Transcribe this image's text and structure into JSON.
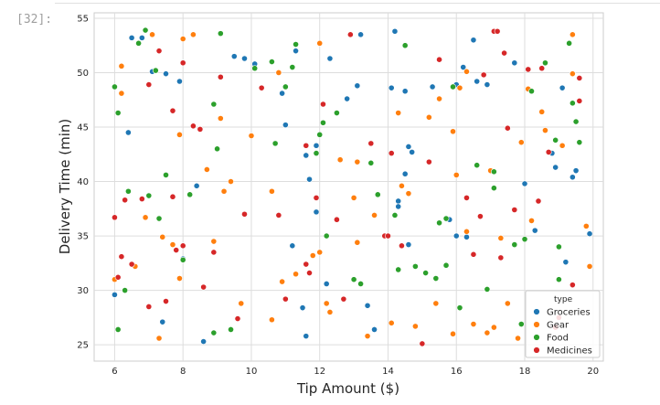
{
  "cell": {
    "prompt": "[32]:"
  },
  "chart_data": {
    "type": "scatter",
    "title": "",
    "xlabel": "Tip Amount ($)",
    "ylabel": "Delivery Time (min)",
    "xlim": [
      5.4,
      20.3
    ],
    "ylim": [
      23.5,
      55.5
    ],
    "xticks": [
      6,
      8,
      10,
      12,
      14,
      16,
      18,
      20
    ],
    "yticks": [
      25,
      30,
      35,
      40,
      45,
      50,
      55
    ],
    "grid": true,
    "legend": {
      "title": "type",
      "position": "lower-right"
    },
    "series": [
      {
        "name": "Groceries",
        "color": "#1f77b4",
        "points": [
          [
            6.0,
            29.6
          ],
          [
            6.4,
            44.5
          ],
          [
            6.5,
            53.2
          ],
          [
            6.8,
            53.2
          ],
          [
            7.1,
            50.1
          ],
          [
            7.4,
            27.1
          ],
          [
            7.5,
            49.9
          ],
          [
            7.9,
            49.2
          ],
          [
            8.0,
            32.9
          ],
          [
            8.4,
            39.6
          ],
          [
            8.6,
            25.3
          ],
          [
            9.5,
            51.5
          ],
          [
            9.8,
            51.3
          ],
          [
            10.1,
            50.8
          ],
          [
            10.9,
            48.1
          ],
          [
            11.0,
            45.2
          ],
          [
            11.2,
            34.1
          ],
          [
            11.3,
            52.0
          ],
          [
            11.5,
            28.4
          ],
          [
            11.6,
            25.8
          ],
          [
            11.6,
            42.4
          ],
          [
            11.7,
            40.2
          ],
          [
            11.9,
            37.2
          ],
          [
            11.9,
            43.3
          ],
          [
            12.2,
            30.6
          ],
          [
            12.3,
            51.3
          ],
          [
            12.8,
            47.6
          ],
          [
            13.1,
            48.8
          ],
          [
            13.2,
            53.5
          ],
          [
            13.4,
            28.6
          ],
          [
            13.6,
            26.4
          ],
          [
            14.1,
            48.6
          ],
          [
            14.2,
            53.8
          ],
          [
            14.3,
            38.2
          ],
          [
            14.3,
            37.7
          ],
          [
            14.5,
            40.7
          ],
          [
            14.5,
            48.3
          ],
          [
            14.6,
            43.2
          ],
          [
            14.6,
            34.2
          ],
          [
            14.7,
            42.7
          ],
          [
            15.3,
            48.7
          ],
          [
            15.8,
            36.5
          ],
          [
            16.0,
            35.0
          ],
          [
            16.0,
            48.9
          ],
          [
            16.2,
            50.5
          ],
          [
            16.3,
            34.9
          ],
          [
            16.5,
            53.0
          ],
          [
            16.6,
            49.2
          ],
          [
            16.9,
            48.9
          ],
          [
            17.7,
            50.9
          ],
          [
            18.0,
            39.8
          ],
          [
            18.3,
            35.5
          ],
          [
            18.8,
            42.6
          ],
          [
            18.9,
            41.3
          ],
          [
            19.1,
            48.6
          ],
          [
            19.2,
            32.6
          ],
          [
            19.4,
            40.4
          ],
          [
            19.5,
            41.0
          ],
          [
            19.9,
            35.2
          ]
        ]
      },
      {
        "name": "Gear",
        "color": "#ff7f0e",
        "points": [
          [
            6.0,
            31.0
          ],
          [
            6.2,
            50.6
          ],
          [
            6.2,
            48.1
          ],
          [
            6.6,
            32.2
          ],
          [
            6.9,
            36.7
          ],
          [
            7.1,
            53.5
          ],
          [
            7.4,
            34.9
          ],
          [
            7.7,
            34.2
          ],
          [
            7.9,
            31.1
          ],
          [
            7.9,
            44.3
          ],
          [
            8.0,
            53.1
          ],
          [
            8.3,
            53.5
          ],
          [
            8.7,
            41.1
          ],
          [
            8.9,
            34.5
          ],
          [
            9.1,
            45.8
          ],
          [
            9.2,
            39.1
          ],
          [
            9.4,
            40.0
          ],
          [
            9.7,
            28.8
          ],
          [
            10.0,
            44.2
          ],
          [
            10.6,
            27.3
          ],
          [
            10.6,
            39.1
          ],
          [
            10.8,
            50.0
          ],
          [
            10.9,
            30.8
          ],
          [
            11.3,
            31.5
          ],
          [
            11.8,
            33.2
          ],
          [
            12.0,
            33.5
          ],
          [
            12.0,
            52.7
          ],
          [
            12.2,
            28.8
          ],
          [
            12.3,
            28.0
          ],
          [
            12.6,
            42.0
          ],
          [
            13.0,
            38.5
          ],
          [
            13.1,
            41.8
          ],
          [
            13.1,
            34.4
          ],
          [
            13.4,
            25.8
          ],
          [
            13.6,
            36.9
          ],
          [
            14.1,
            27.0
          ],
          [
            14.3,
            46.3
          ],
          [
            14.4,
            39.6
          ],
          [
            14.6,
            38.9
          ],
          [
            14.8,
            26.7
          ],
          [
            15.2,
            45.9
          ],
          [
            15.4,
            28.8
          ],
          [
            15.5,
            47.6
          ],
          [
            15.9,
            26.0
          ],
          [
            15.9,
            44.6
          ],
          [
            16.0,
            40.6
          ],
          [
            16.1,
            48.6
          ],
          [
            16.3,
            50.1
          ],
          [
            16.3,
            35.4
          ],
          [
            16.5,
            26.9
          ],
          [
            16.9,
            26.1
          ],
          [
            17.0,
            41.0
          ],
          [
            17.1,
            26.6
          ],
          [
            17.3,
            34.8
          ],
          [
            17.5,
            28.8
          ],
          [
            17.8,
            25.6
          ],
          [
            17.9,
            43.6
          ],
          [
            18.1,
            48.5
          ],
          [
            18.2,
            36.4
          ],
          [
            18.5,
            46.4
          ],
          [
            18.6,
            44.7
          ],
          [
            19.1,
            43.3
          ],
          [
            19.4,
            53.5
          ],
          [
            19.4,
            49.9
          ],
          [
            19.8,
            35.9
          ],
          [
            19.9,
            32.2
          ],
          [
            7.3,
            25.6
          ]
        ]
      },
      {
        "name": "Food",
        "color": "#2ca02c",
        "points": [
          [
            6.0,
            48.7
          ],
          [
            6.1,
            46.3
          ],
          [
            6.1,
            26.4
          ],
          [
            6.3,
            30.0
          ],
          [
            6.4,
            39.1
          ],
          [
            6.7,
            52.7
          ],
          [
            6.9,
            53.9
          ],
          [
            7.0,
            38.7
          ],
          [
            7.2,
            50.2
          ],
          [
            7.3,
            36.6
          ],
          [
            7.5,
            40.6
          ],
          [
            8.0,
            32.8
          ],
          [
            8.2,
            38.8
          ],
          [
            8.9,
            26.1
          ],
          [
            8.9,
            47.1
          ],
          [
            9.0,
            43.0
          ],
          [
            9.1,
            53.6
          ],
          [
            9.4,
            26.4
          ],
          [
            10.1,
            50.4
          ],
          [
            10.6,
            51.0
          ],
          [
            10.7,
            43.5
          ],
          [
            11.0,
            48.7
          ],
          [
            11.2,
            50.5
          ],
          [
            11.3,
            52.6
          ],
          [
            11.9,
            42.6
          ],
          [
            12.0,
            44.3
          ],
          [
            12.1,
            45.4
          ],
          [
            12.2,
            35.0
          ],
          [
            12.5,
            46.3
          ],
          [
            13.0,
            31.0
          ],
          [
            13.2,
            30.6
          ],
          [
            13.5,
            41.7
          ],
          [
            13.7,
            38.8
          ],
          [
            14.2,
            36.9
          ],
          [
            14.3,
            31.9
          ],
          [
            14.5,
            52.5
          ],
          [
            14.8,
            32.2
          ],
          [
            15.1,
            31.6
          ],
          [
            15.4,
            31.1
          ],
          [
            15.5,
            36.2
          ],
          [
            15.7,
            32.3
          ],
          [
            15.7,
            36.6
          ],
          [
            15.9,
            48.7
          ],
          [
            16.1,
            28.4
          ],
          [
            16.6,
            41.5
          ],
          [
            16.9,
            30.1
          ],
          [
            17.1,
            40.9
          ],
          [
            17.1,
            39.4
          ],
          [
            17.7,
            34.2
          ],
          [
            17.9,
            26.9
          ],
          [
            18.0,
            34.7
          ],
          [
            18.2,
            48.3
          ],
          [
            18.6,
            50.9
          ],
          [
            18.9,
            43.8
          ],
          [
            19.0,
            34.0
          ],
          [
            19.0,
            31.0
          ],
          [
            19.3,
            52.7
          ],
          [
            19.4,
            47.2
          ],
          [
            19.5,
            45.5
          ],
          [
            19.6,
            43.6
          ]
        ]
      },
      {
        "name": "Medicines",
        "color": "#d62728",
        "points": [
          [
            6.0,
            36.7
          ],
          [
            6.1,
            31.2
          ],
          [
            6.2,
            33.1
          ],
          [
            6.3,
            38.3
          ],
          [
            6.5,
            32.4
          ],
          [
            6.8,
            38.4
          ],
          [
            7.0,
            48.9
          ],
          [
            7.0,
            28.5
          ],
          [
            7.3,
            52.0
          ],
          [
            7.5,
            29.0
          ],
          [
            7.7,
            46.5
          ],
          [
            7.7,
            38.6
          ],
          [
            7.8,
            33.7
          ],
          [
            8.0,
            50.9
          ],
          [
            8.0,
            34.1
          ],
          [
            8.3,
            45.1
          ],
          [
            8.5,
            44.8
          ],
          [
            8.6,
            30.3
          ],
          [
            8.9,
            33.5
          ],
          [
            9.1,
            49.6
          ],
          [
            9.6,
            27.4
          ],
          [
            9.8,
            37.0
          ],
          [
            10.3,
            48.6
          ],
          [
            10.8,
            36.9
          ],
          [
            11.0,
            29.2
          ],
          [
            11.6,
            43.3
          ],
          [
            11.6,
            32.4
          ],
          [
            11.7,
            31.6
          ],
          [
            11.9,
            38.5
          ],
          [
            12.1,
            47.1
          ],
          [
            12.5,
            36.5
          ],
          [
            12.7,
            29.2
          ],
          [
            12.9,
            53.5
          ],
          [
            13.5,
            43.5
          ],
          [
            13.9,
            35.0
          ],
          [
            14.1,
            42.6
          ],
          [
            14.4,
            34.1
          ],
          [
            15.0,
            25.1
          ],
          [
            15.2,
            41.8
          ],
          [
            15.5,
            51.2
          ],
          [
            16.3,
            38.5
          ],
          [
            16.7,
            36.8
          ],
          [
            16.8,
            49.8
          ],
          [
            17.1,
            53.8
          ],
          [
            17.2,
            53.8
          ],
          [
            17.4,
            51.8
          ],
          [
            17.5,
            44.9
          ],
          [
            17.7,
            37.4
          ],
          [
            18.1,
            50.3
          ],
          [
            18.5,
            50.4
          ],
          [
            18.7,
            42.7
          ],
          [
            18.9,
            26.6
          ],
          [
            19.0,
            27.5
          ],
          [
            19.4,
            30.5
          ],
          [
            19.6,
            49.5
          ],
          [
            19.6,
            47.4
          ],
          [
            16.5,
            33.3
          ],
          [
            17.3,
            33.0
          ],
          [
            18.4,
            38.2
          ],
          [
            14.0,
            35.0
          ]
        ]
      }
    ]
  }
}
